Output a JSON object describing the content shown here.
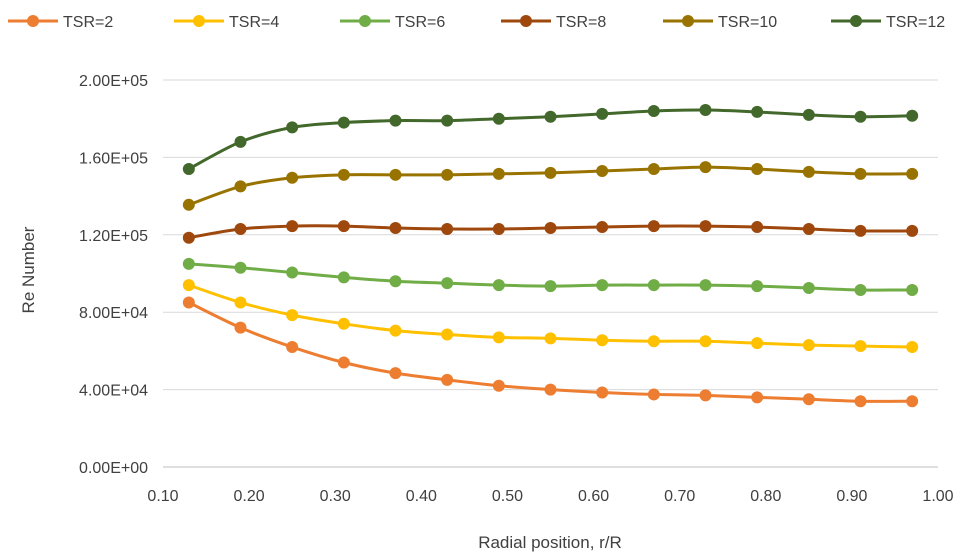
{
  "chart_data": {
    "type": "line",
    "title": "",
    "xlabel": "Radial position, r/R",
    "ylabel": "Re Number",
    "x": [
      0.13,
      0.19,
      0.25,
      0.31,
      0.37,
      0.43,
      0.49,
      0.55,
      0.61,
      0.67,
      0.73,
      0.79,
      0.85,
      0.91,
      0.97
    ],
    "xlim": [
      0.1,
      1.0
    ],
    "ylim": [
      0,
      200000
    ],
    "x_ticks": [
      "0.10",
      "0.20",
      "0.30",
      "0.40",
      "0.50",
      "0.60",
      "0.70",
      "0.80",
      "0.90",
      "1.00"
    ],
    "y_ticks": [
      "0.00E+00",
      "4.00E+04",
      "8.00E+04",
      "1.20E+05",
      "1.60E+05",
      "2.00E+05"
    ],
    "grid": "horizontal",
    "legend_position": "top",
    "series": [
      {
        "name": "TSR=2",
        "color": "#ED7D31",
        "values": [
          85000,
          72000,
          62000,
          54000,
          48500,
          45000,
          42000,
          40000,
          38500,
          37500,
          37000,
          36000,
          35000,
          34000,
          34000
        ]
      },
      {
        "name": "TSR=4",
        "color": "#FFC000",
        "values": [
          94000,
          85000,
          78500,
          74000,
          70500,
          68500,
          67000,
          66500,
          65500,
          65000,
          65000,
          64000,
          63000,
          62500,
          62000
        ]
      },
      {
        "name": "TSR=6",
        "color": "#70AD47",
        "values": [
          105000,
          103000,
          100500,
          98000,
          96000,
          95000,
          94000,
          93500,
          94000,
          94000,
          94000,
          93500,
          92500,
          91500,
          91500
        ]
      },
      {
        "name": "TSR=8",
        "color": "#9E480E",
        "values": [
          118500,
          123000,
          124500,
          124500,
          123500,
          123000,
          123000,
          123500,
          124000,
          124500,
          124500,
          124000,
          123000,
          122000,
          122000
        ]
      },
      {
        "name": "TSR=10",
        "color": "#997300",
        "values": [
          135500,
          145000,
          149500,
          151000,
          151000,
          151000,
          151500,
          152000,
          153000,
          154000,
          155000,
          154000,
          152500,
          151500,
          151500
        ]
      },
      {
        "name": "TSR=12",
        "color": "#43682B",
        "values": [
          154000,
          168000,
          175500,
          178000,
          179000,
          179000,
          180000,
          181000,
          182500,
          184000,
          184500,
          183500,
          182000,
          181000,
          181500
        ]
      }
    ]
  }
}
